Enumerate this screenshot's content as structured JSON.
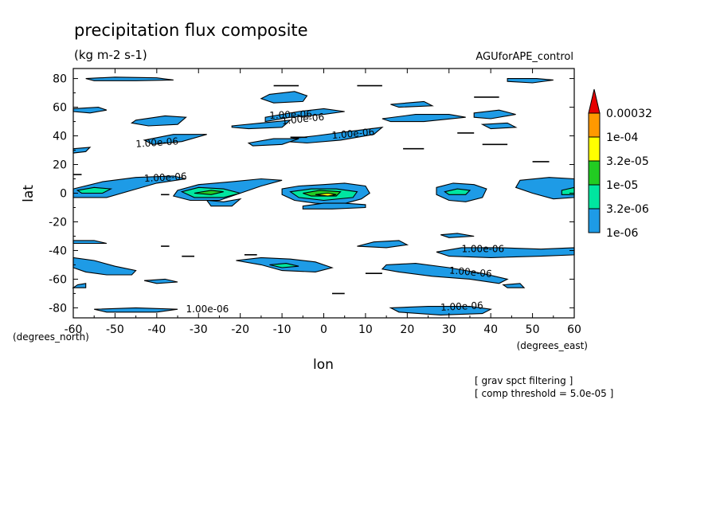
{
  "chart_data": {
    "type": "contour",
    "title": "precipitation flux composite",
    "units": "(kg m-2 s-1)",
    "dataset": "AGUforAPE_control",
    "xlabel": "lon",
    "ylabel": "lat",
    "xunits": "(degrees_east)",
    "yunits": "(degrees_north)",
    "xlim": [
      -60,
      60
    ],
    "ylim": [
      -87,
      87
    ],
    "xticks": [
      -60,
      -50,
      -40,
      -30,
      -20,
      -10,
      0,
      10,
      20,
      30,
      40,
      50,
      60
    ],
    "yticks": [
      -80,
      -60,
      -40,
      -20,
      0,
      20,
      40,
      60,
      80
    ],
    "notes": [
      "[ grav spct filtering ]",
      "[ comp threshold = 5.0e-05 ]"
    ],
    "colorbar": {
      "levels": [
        "1e-06",
        "3.2e-06",
        "1e-05",
        "3.2e-05",
        "1e-04",
        "0.00032"
      ],
      "colors": [
        "#1e9be6",
        "#00e6a0",
        "#22cc22",
        "#ffff00",
        "#ff9900",
        "#e60000"
      ]
    },
    "contour_labels": [
      "1.00e-06",
      "1.00e-06",
      "1.00e-06",
      "1.00e-06",
      "1.00e-06",
      "1.00e-06",
      "1.00e-06",
      "1.00e-06",
      "1.00e-06"
    ],
    "regions": [
      {
        "level": 0,
        "pts": [
          [
            -57,
            80
          ],
          [
            -50,
            81
          ],
          [
            -40,
            80.5
          ],
          [
            -36,
            79
          ],
          [
            -45,
            78.5
          ],
          [
            -55,
            78.5
          ]
        ]
      },
      {
        "level": 0,
        "pts": [
          [
            -60,
            59
          ],
          [
            -54,
            60
          ],
          [
            -52,
            58
          ],
          [
            -56,
            56
          ],
          [
            -60,
            57
          ]
        ]
      },
      {
        "level": 0,
        "pts": [
          [
            -45,
            51
          ],
          [
            -38,
            54
          ],
          [
            -33,
            53
          ],
          [
            -35,
            48
          ],
          [
            -42,
            47
          ],
          [
            -46,
            49
          ]
        ]
      },
      {
        "level": 0,
        "pts": [
          [
            -43,
            37
          ],
          [
            -36,
            41
          ],
          [
            -28,
            41
          ],
          [
            -34,
            36
          ],
          [
            -41,
            34
          ]
        ]
      },
      {
        "level": 0,
        "pts": [
          [
            -60,
            3
          ],
          [
            -53,
            8
          ],
          [
            -45,
            11
          ],
          [
            -36,
            12
          ],
          [
            -33,
            10
          ],
          [
            -40,
            7
          ],
          [
            -46,
            2
          ],
          [
            -52,
            -3
          ],
          [
            -60,
            -3
          ]
        ]
      },
      {
        "level": 0,
        "pts": [
          [
            -35,
            2
          ],
          [
            -30,
            6
          ],
          [
            -22,
            8
          ],
          [
            -15,
            10
          ],
          [
            -10,
            9
          ],
          [
            -15,
            5
          ],
          [
            -20,
            0
          ],
          [
            -25,
            -5
          ],
          [
            -32,
            -5
          ],
          [
            -36,
            -2
          ]
        ]
      },
      {
        "level": 0,
        "pts": [
          [
            -28,
            -5
          ],
          [
            -24,
            -6
          ],
          [
            -20,
            -4
          ],
          [
            -22,
            -9
          ],
          [
            -27,
            -9
          ]
        ]
      },
      {
        "level": 0,
        "pts": [
          [
            -10,
            3
          ],
          [
            -6,
            5
          ],
          [
            0,
            6
          ],
          [
            5,
            7
          ],
          [
            10,
            5
          ],
          [
            11,
            0
          ],
          [
            9,
            -4
          ],
          [
            4,
            -8
          ],
          [
            -2,
            -7
          ],
          [
            -7,
            -5
          ],
          [
            -10,
            -1
          ]
        ]
      },
      {
        "level": 0,
        "pts": [
          [
            -5,
            -9
          ],
          [
            0,
            -7
          ],
          [
            5,
            -7
          ],
          [
            10,
            -8
          ],
          [
            10,
            -10
          ],
          [
            2,
            -11
          ],
          [
            -5,
            -11
          ]
        ]
      },
      {
        "level": 0,
        "pts": [
          [
            -14,
            50
          ],
          [
            -8,
            53
          ],
          [
            0,
            55
          ],
          [
            5,
            57
          ],
          [
            0,
            59
          ],
          [
            -6,
            57
          ],
          [
            -14,
            53
          ]
        ]
      },
      {
        "level": 0,
        "pts": [
          [
            -22,
            47
          ],
          [
            -15,
            49
          ],
          [
            -8,
            51
          ],
          [
            -10,
            46
          ],
          [
            -18,
            45
          ],
          [
            -22,
            46
          ]
        ]
      },
      {
        "level": 0,
        "pts": [
          [
            -13,
            69
          ],
          [
            -7,
            71
          ],
          [
            -4,
            68
          ],
          [
            -5,
            64
          ],
          [
            -12,
            63
          ],
          [
            -15,
            66
          ]
        ]
      },
      {
        "level": 0,
        "pts": [
          [
            -8,
            38
          ],
          [
            -2,
            40
          ],
          [
            6,
            43
          ],
          [
            14,
            46
          ],
          [
            12,
            41
          ],
          [
            4,
            37
          ],
          [
            -4,
            35
          ],
          [
            -9,
            36
          ]
        ]
      },
      {
        "level": 0,
        "pts": [
          [
            -18,
            35
          ],
          [
            -12,
            38
          ],
          [
            -6,
            38
          ],
          [
            -10,
            34
          ],
          [
            -17,
            33
          ]
        ]
      },
      {
        "level": 0,
        "pts": [
          [
            14,
            52
          ],
          [
            22,
            55
          ],
          [
            30,
            55
          ],
          [
            34,
            53
          ],
          [
            24,
            50
          ],
          [
            16,
            50
          ]
        ]
      },
      {
        "level": 0,
        "pts": [
          [
            16,
            62
          ],
          [
            24,
            64
          ],
          [
            26,
            61
          ],
          [
            18,
            60
          ]
        ]
      },
      {
        "level": 0,
        "pts": [
          [
            36,
            56
          ],
          [
            42,
            58
          ],
          [
            46,
            55
          ],
          [
            40,
            52
          ],
          [
            36,
            53
          ]
        ]
      },
      {
        "level": 0,
        "pts": [
          [
            38,
            48
          ],
          [
            44,
            49
          ],
          [
            46,
            46
          ],
          [
            40,
            45
          ]
        ]
      },
      {
        "level": 0,
        "pts": [
          [
            27,
            4
          ],
          [
            31,
            7
          ],
          [
            36,
            6
          ],
          [
            39,
            3
          ],
          [
            38,
            -3
          ],
          [
            34,
            -6
          ],
          [
            30,
            -5
          ],
          [
            27,
            -1
          ]
        ]
      },
      {
        "level": 0,
        "pts": [
          [
            47,
            9
          ],
          [
            54,
            11
          ],
          [
            60,
            10
          ],
          [
            60,
            -3
          ],
          [
            55,
            -4
          ],
          [
            50,
            0
          ],
          [
            46,
            4
          ]
        ]
      },
      {
        "level": 0,
        "pts": [
          [
            8,
            -37
          ],
          [
            12,
            -34
          ],
          [
            18,
            -33
          ],
          [
            20,
            -36
          ],
          [
            15,
            -38
          ]
        ]
      },
      {
        "level": 0,
        "pts": [
          [
            27,
            -41
          ],
          [
            33,
            -38
          ],
          [
            42,
            -38
          ],
          [
            52,
            -39
          ],
          [
            60,
            -38
          ],
          [
            60,
            -43
          ],
          [
            52,
            -44
          ],
          [
            40,
            -45
          ],
          [
            30,
            -44
          ]
        ]
      },
      {
        "level": 0,
        "pts": [
          [
            -21,
            -47
          ],
          [
            -15,
            -45
          ],
          [
            -8,
            -46
          ],
          [
            -2,
            -48
          ],
          [
            2,
            -52
          ],
          [
            -2,
            -55
          ],
          [
            -10,
            -54
          ],
          [
            -15,
            -50
          ]
        ]
      },
      {
        "level": 0,
        "pts": [
          [
            15,
            -50
          ],
          [
            22,
            -49
          ],
          [
            30,
            -52
          ],
          [
            38,
            -56
          ],
          [
            44,
            -60
          ],
          [
            42,
            -63
          ],
          [
            35,
            -60
          ],
          [
            26,
            -58
          ],
          [
            18,
            -55
          ],
          [
            14,
            -53
          ]
        ]
      },
      {
        "level": 0,
        "pts": [
          [
            -60,
            -45
          ],
          [
            -55,
            -47
          ],
          [
            -50,
            -51
          ],
          [
            -45,
            -54
          ],
          [
            -46,
            -57
          ],
          [
            -52,
            -57
          ],
          [
            -57,
            -55
          ],
          [
            -60,
            -52
          ]
        ]
      },
      {
        "level": 0,
        "pts": [
          [
            -43,
            -61
          ],
          [
            -38,
            -60
          ],
          [
            -35,
            -62
          ],
          [
            -40,
            -63
          ]
        ]
      },
      {
        "level": 0,
        "pts": [
          [
            -55,
            -81
          ],
          [
            -45,
            -80
          ],
          [
            -35,
            -81
          ],
          [
            -40,
            -83
          ],
          [
            -52,
            -83
          ]
        ]
      },
      {
        "level": 0,
        "pts": [
          [
            16,
            -80
          ],
          [
            25,
            -79
          ],
          [
            35,
            -79
          ],
          [
            40,
            -81
          ],
          [
            38,
            -84
          ],
          [
            28,
            -85
          ],
          [
            18,
            -83
          ]
        ]
      },
      {
        "level": 0,
        "pts": [
          [
            28,
            -29
          ],
          [
            32,
            -28
          ],
          [
            36,
            -30
          ],
          [
            30,
            -31
          ]
        ]
      },
      {
        "level": 0,
        "pts": [
          [
            -60,
            -33
          ],
          [
            -55,
            -33
          ],
          [
            -52,
            -35
          ],
          [
            -60,
            -35
          ]
        ]
      },
      {
        "level": 0,
        "pts": [
          [
            -59,
            -64
          ],
          [
            -57,
            -63
          ],
          [
            -57,
            -66
          ],
          [
            -60,
            -66
          ]
        ]
      },
      {
        "level": 0,
        "pts": [
          [
            43,
            -64
          ],
          [
            47,
            -63
          ],
          [
            48,
            -66
          ],
          [
            44,
            -66
          ]
        ]
      },
      {
        "level": 0,
        "pts": [
          [
            44,
            80
          ],
          [
            51,
            80
          ],
          [
            55,
            79
          ],
          [
            50,
            77
          ],
          [
            44,
            78
          ]
        ]
      },
      {
        "level": 0,
        "pts": [
          [
            -60,
            31
          ],
          [
            -56,
            32
          ],
          [
            -57,
            29
          ],
          [
            -60,
            28
          ]
        ]
      },
      {
        "level": 1,
        "pts": [
          [
            -59,
            2
          ],
          [
            -55,
            4
          ],
          [
            -51,
            3
          ],
          [
            -53,
            0
          ],
          [
            -58,
            0
          ]
        ]
      },
      {
        "level": 1,
        "pts": [
          [
            -34,
            1
          ],
          [
            -30,
            4
          ],
          [
            -24,
            3
          ],
          [
            -20,
            0
          ],
          [
            -24,
            -3
          ],
          [
            -31,
            -3
          ]
        ]
      },
      {
        "level": 1,
        "pts": [
          [
            -8,
            1
          ],
          [
            -3,
            3
          ],
          [
            3,
            3
          ],
          [
            8,
            1
          ],
          [
            7,
            -3
          ],
          [
            0,
            -5
          ],
          [
            -6,
            -3
          ]
        ]
      },
      {
        "level": 1,
        "pts": [
          [
            29,
            1
          ],
          [
            32,
            3
          ],
          [
            35,
            2
          ],
          [
            34,
            -1
          ],
          [
            30,
            -1
          ]
        ]
      },
      {
        "level": 1,
        "pts": [
          [
            -13,
            -50
          ],
          [
            -9,
            -49
          ],
          [
            -6,
            -51
          ],
          [
            -10,
            -52
          ]
        ]
      },
      {
        "level": 1,
        "pts": [
          [
            57,
            2
          ],
          [
            60,
            4
          ],
          [
            60,
            -1
          ],
          [
            57,
            -1
          ]
        ]
      },
      {
        "level": 2,
        "pts": [
          [
            -31,
            0
          ],
          [
            -27,
            2
          ],
          [
            -24,
            1
          ],
          [
            -27,
            -1
          ]
        ]
      },
      {
        "level": 2,
        "pts": [
          [
            -5,
            0
          ],
          [
            -1,
            2
          ],
          [
            4,
            1
          ],
          [
            3,
            -2
          ],
          [
            -3,
            -2
          ]
        ]
      },
      {
        "level": 3,
        "pts": [
          [
            -2,
            -1
          ],
          [
            1,
            0
          ],
          [
            3,
            -1
          ],
          [
            1,
            -2
          ]
        ]
      }
    ],
    "dashes": [
      [
        -12,
        75,
        -6,
        75
      ],
      [
        8,
        75,
        14,
        75
      ],
      [
        36,
        67,
        42,
        67
      ],
      [
        -60,
        13,
        -58,
        13
      ],
      [
        -39,
        -37,
        -37,
        -37
      ],
      [
        -34,
        -44,
        -31,
        -44
      ],
      [
        -19,
        -43,
        -16,
        -43
      ],
      [
        10,
        -56,
        14,
        -56
      ],
      [
        -8,
        39,
        -4,
        39
      ],
      [
        -39,
        -1,
        -37,
        -1
      ],
      [
        19,
        31,
        24,
        31
      ],
      [
        38,
        34,
        44,
        34
      ],
      [
        50,
        22,
        54,
        22
      ],
      [
        32,
        42,
        36,
        42
      ],
      [
        2,
        -70,
        5,
        -70
      ]
    ]
  }
}
